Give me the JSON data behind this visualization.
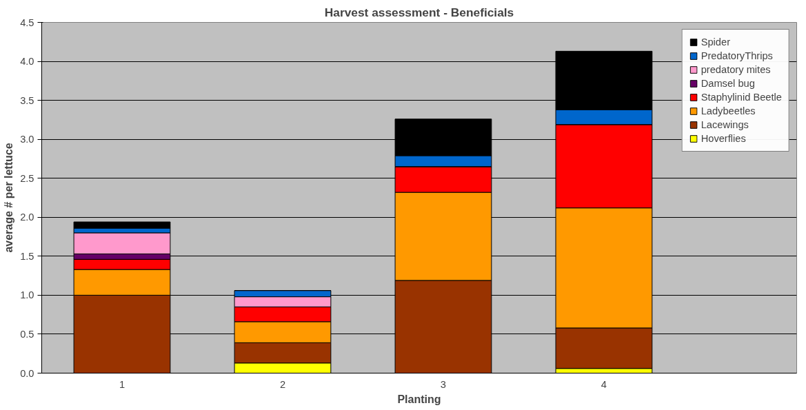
{
  "chart_data": {
    "type": "bar",
    "title": "Harvest assessment - Beneficials",
    "xlabel": "Planting",
    "ylabel": "average # per lettuce",
    "categories": [
      "1",
      "2",
      "3",
      "4"
    ],
    "stacked": true,
    "series": [
      {
        "name": "Hoverflies",
        "color": "#ffff00",
        "values": [
          0,
          0.13,
          0,
          0.06
        ]
      },
      {
        "name": "Lacewings",
        "color": "#993300",
        "values": [
          1.0,
          0.26,
          1.19,
          0.52
        ]
      },
      {
        "name": "Ladybeetles",
        "color": "#ff9900",
        "values": [
          0.33,
          0.27,
          1.13,
          1.54
        ]
      },
      {
        "name": "Staphylinid Beetle",
        "color": "#ff0000",
        "values": [
          0.13,
          0.19,
          0.33,
          1.07
        ]
      },
      {
        "name": "Damsel bug",
        "color": "#660066",
        "values": [
          0.07,
          0,
          0,
          0
        ]
      },
      {
        "name": "predatory mites",
        "color": "#ff99cc",
        "values": [
          0.27,
          0.13,
          0,
          0
        ]
      },
      {
        "name": "PredatoryThrips",
        "color": "#0066cc",
        "values": [
          0.06,
          0.08,
          0.14,
          0.19
        ]
      },
      {
        "name": "Spider",
        "color": "#000000",
        "values": [
          0.08,
          0,
          0.47,
          0.75
        ]
      }
    ],
    "ylim": [
      0,
      4.5
    ],
    "yticks": [
      {
        "value": 0,
        "label": "0.0"
      },
      {
        "value": 0.5,
        "label": "0.5"
      },
      {
        "value": 1,
        "label": "1.0"
      },
      {
        "value": 1.5,
        "label": "1.5"
      },
      {
        "value": 2,
        "label": "2.0"
      },
      {
        "value": 2.5,
        "label": "2.5"
      },
      {
        "value": 3,
        "label": "3.0"
      },
      {
        "value": 3.5,
        "label": "3.5"
      },
      {
        "value": 4,
        "label": "4.0"
      },
      {
        "value": 4.5,
        "label": "4.5"
      }
    ],
    "grid": "y",
    "legend": "top right"
  }
}
